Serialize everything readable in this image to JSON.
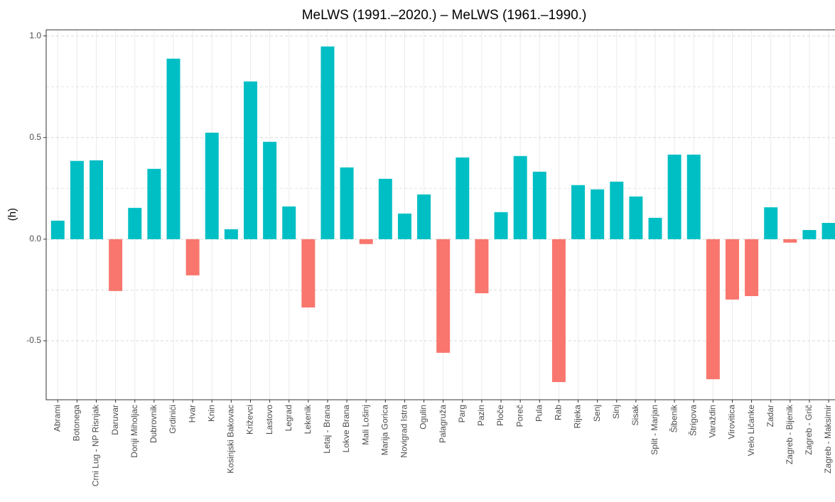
{
  "chart_data": {
    "type": "bar",
    "title": "MeLWS (1991.–2020.) – MeLWS (1961.–1990.)",
    "y_label": "(h)",
    "categories": [
      "Abrami",
      "Botonega",
      "Crni Lug - NP Risnjak",
      "Daruvar",
      "Donji Miholjac",
      "Dubrovnik",
      "Grdinići",
      "Hvar",
      "Knin",
      "Kosinjski Bakovac",
      "Križevci",
      "Lastovo",
      "Legrad",
      "Lekenik",
      "Letaj - Brana",
      "Lokve Brana",
      "Mali Lošinj",
      "Marija Gorica",
      "Novigrad Istra",
      "Ogulin",
      "Palagruža",
      "Parg",
      "Pazin",
      "Ploče",
      "Poreč",
      "Pula",
      "Rab",
      "Rijeka",
      "Senj",
      "Sinj",
      "Sisak",
      "Split - Marjan",
      "Šibenik",
      "Štrigova",
      "Varaždin",
      "Virovitica",
      "Vrelo Ličanke",
      "Zadar",
      "Zagreb - Bijenik",
      "Zagreb - Grič",
      "Zagreb - Maksimir"
    ],
    "values": [
      0.091,
      0.385,
      0.388,
      -0.255,
      0.154,
      0.346,
      0.888,
      -0.178,
      0.524,
      0.049,
      0.776,
      0.479,
      0.161,
      -0.336,
      0.948,
      0.353,
      -0.024,
      0.297,
      0.126,
      0.22,
      -0.559,
      0.402,
      -0.266,
      0.133,
      0.409,
      0.332,
      -0.703,
      0.266,
      0.245,
      0.283,
      0.21,
      0.105,
      0.416,
      0.416,
      -0.689,
      -0.297,
      -0.28,
      0.157,
      -0.017,
      0.045,
      0.08
    ],
    "colors": {
      "positive": "#00BFC4",
      "negative": "#F8766D"
    },
    "ylim": [
      -0.79,
      1.03
    ],
    "yticks": [
      -0.5,
      {
        "value": 0,
        "label": "0.0"
      },
      0.5,
      {
        "value": 1,
        "label": "1.0"
      }
    ],
    "minor_yticks": [
      -0.25,
      0.25,
      0.75
    ],
    "grid": true
  }
}
